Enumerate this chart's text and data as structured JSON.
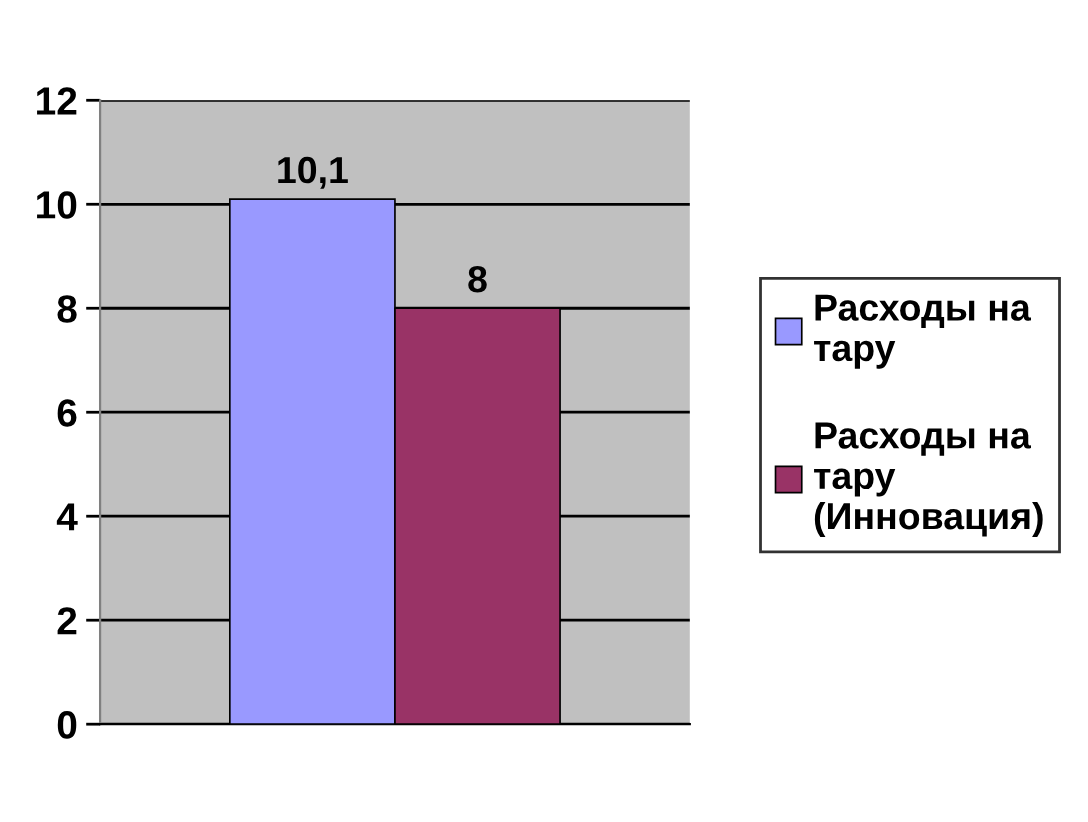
{
  "chart_data": {
    "type": "bar",
    "categories": [
      null
    ],
    "series": [
      {
        "name": "Расходы на тару",
        "color": "#9999ff",
        "values": [
          10.1
        ],
        "value_labels": [
          "10,1"
        ]
      },
      {
        "name": "Расходы на тару (Инновация)",
        "color": "#993366",
        "values": [
          8
        ],
        "value_labels": [
          "8"
        ]
      }
    ],
    "ylim": [
      0,
      12
    ],
    "yticks": [
      0,
      2,
      4,
      6,
      8,
      10,
      12
    ],
    "grid": "y",
    "legend": "right"
  }
}
